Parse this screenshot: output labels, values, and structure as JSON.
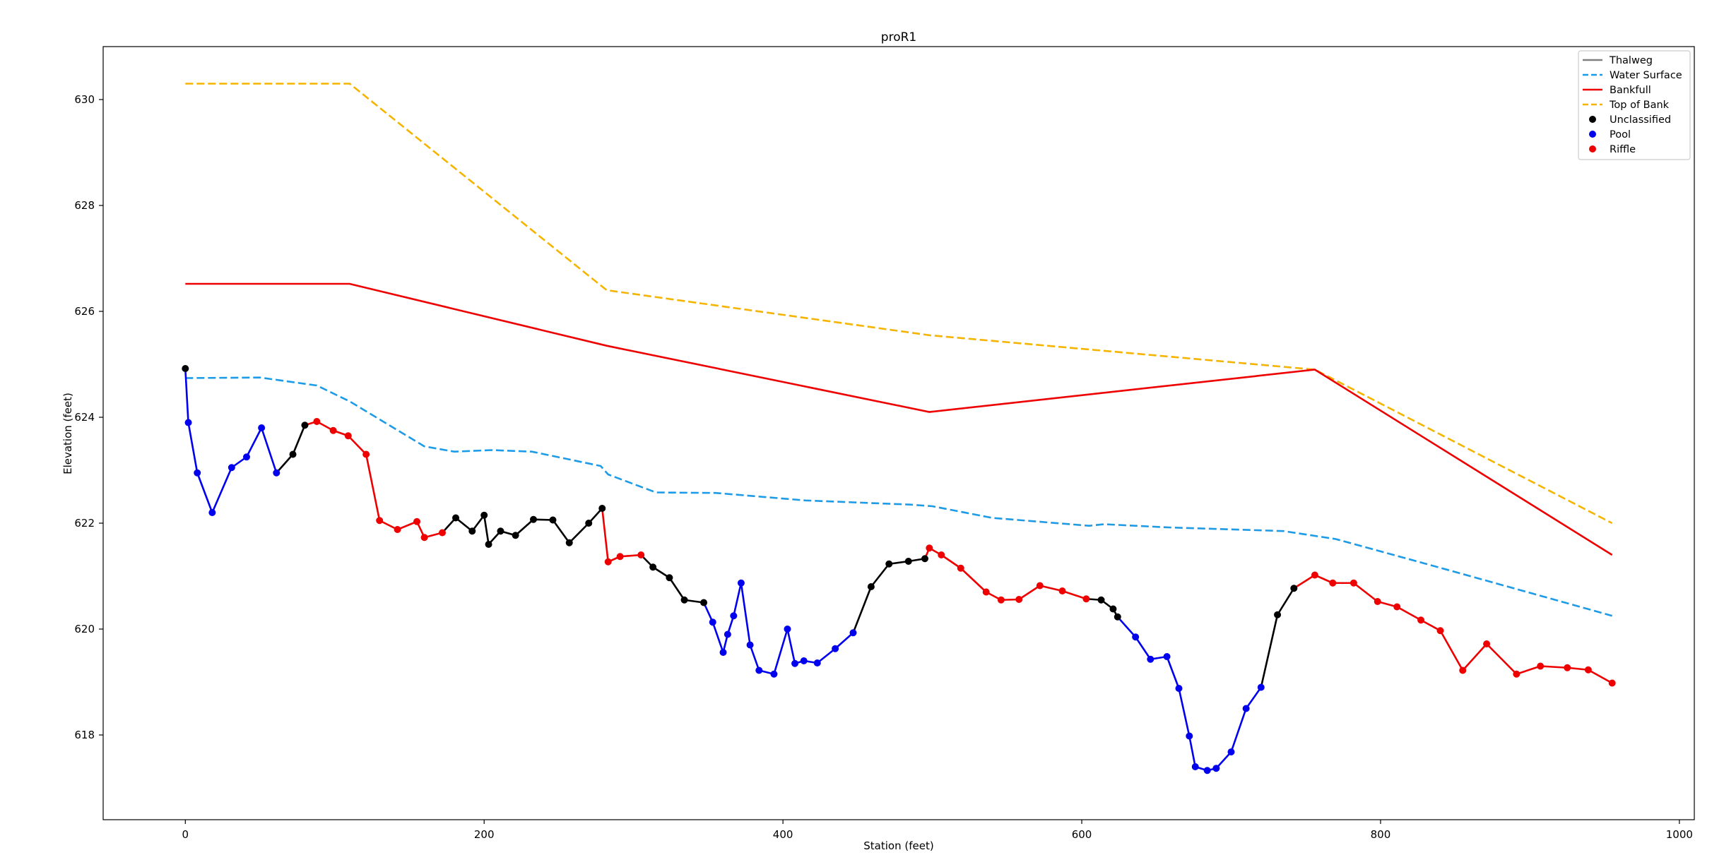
{
  "chart_data": {
    "type": "line",
    "title": "proR1",
    "xlabel": "Station (feet)",
    "ylabel": "Elevation (feet)",
    "xlim": [
      -55,
      1010
    ],
    "ylim": [
      616.4,
      631.0
    ],
    "xticks": [
      0,
      200,
      400,
      600,
      800,
      1000
    ],
    "yticks": [
      618,
      620,
      622,
      624,
      626,
      628,
      630
    ],
    "grid": false,
    "legend": "top-right",
    "colors": {
      "thalweg": "#000000",
      "pool_line": "#0000ee",
      "riffle_line": "#ee0000",
      "water_surface": "#1e9be6",
      "bankfull": "#ee0000",
      "top_of_bank": "#f5b400",
      "legend_thalweg": "#808080",
      "unclassified": "#000000",
      "pool": "#0000ee",
      "riffle": "#ee0000"
    },
    "legend_entries": [
      {
        "label": "Thalweg",
        "kind": "line",
        "color": "#808080",
        "dash": false
      },
      {
        "label": "Water Surface",
        "kind": "line",
        "color": "#1e9be6",
        "dash": true
      },
      {
        "label": "Bankfull",
        "kind": "line",
        "color": "#ee0000",
        "dash": false
      },
      {
        "label": "Top of Bank",
        "kind": "line",
        "color": "#f5b400",
        "dash": true
      },
      {
        "label": "Unclassified",
        "kind": "dot",
        "color": "#000000"
      },
      {
        "label": "Pool",
        "kind": "dot",
        "color": "#0000ee"
      },
      {
        "label": "Riffle",
        "kind": "dot",
        "color": "#ee0000"
      }
    ],
    "series": [
      {
        "name": "Top of Bank",
        "style": "dashed",
        "color": "#f5b400",
        "x": [
          0,
          110,
          282,
          498,
          756,
          955
        ],
        "y": [
          630.3,
          630.3,
          626.4,
          625.55,
          624.9,
          622.0
        ]
      },
      {
        "name": "Bankfull",
        "style": "solid",
        "color": "#ee0000",
        "x": [
          0,
          110,
          282,
          498,
          756,
          955
        ],
        "y": [
          626.52,
          626.52,
          625.35,
          624.1,
          624.9,
          621.4
        ]
      },
      {
        "name": "Water Surface",
        "style": "dashed",
        "color": "#1e9be6",
        "x": [
          0,
          50,
          88,
          110,
          160,
          180,
          205,
          232,
          278,
          283,
          315,
          355,
          415,
          485,
          500,
          540,
          605,
          615,
          658,
          735,
          770,
          828,
          860,
          955
        ],
        "y": [
          624.74,
          624.75,
          624.6,
          624.3,
          623.45,
          623.35,
          623.38,
          623.35,
          623.08,
          622.92,
          622.58,
          622.57,
          622.43,
          622.35,
          622.32,
          622.1,
          621.95,
          621.98,
          621.92,
          621.85,
          621.7,
          621.25,
          621.0,
          620.25
        ]
      }
    ],
    "thalweg_points": [
      {
        "x": 0,
        "y": 624.92,
        "c": "unclassified"
      },
      {
        "x": 2,
        "y": 623.9,
        "c": "pool"
      },
      {
        "x": 8,
        "y": 622.95,
        "c": "pool"
      },
      {
        "x": 18,
        "y": 622.2,
        "c": "pool"
      },
      {
        "x": 31,
        "y": 623.05,
        "c": "pool"
      },
      {
        "x": 41,
        "y": 623.25,
        "c": "pool"
      },
      {
        "x": 51,
        "y": 623.8,
        "c": "pool"
      },
      {
        "x": 61,
        "y": 622.95,
        "c": "pool"
      },
      {
        "x": 72,
        "y": 623.3,
        "c": "unclassified"
      },
      {
        "x": 80,
        "y": 623.85,
        "c": "unclassified"
      },
      {
        "x": 88,
        "y": 623.92,
        "c": "riffle"
      },
      {
        "x": 99,
        "y": 623.75,
        "c": "riffle"
      },
      {
        "x": 109,
        "y": 623.65,
        "c": "riffle"
      },
      {
        "x": 121,
        "y": 623.3,
        "c": "riffle"
      },
      {
        "x": 130,
        "y": 622.05,
        "c": "riffle"
      },
      {
        "x": 142,
        "y": 621.88,
        "c": "riffle"
      },
      {
        "x": 155,
        "y": 622.03,
        "c": "riffle"
      },
      {
        "x": 160,
        "y": 621.73,
        "c": "riffle"
      },
      {
        "x": 172,
        "y": 621.82,
        "c": "riffle"
      },
      {
        "x": 181,
        "y": 622.1,
        "c": "unclassified"
      },
      {
        "x": 192,
        "y": 621.85,
        "c": "unclassified"
      },
      {
        "x": 200,
        "y": 622.15,
        "c": "unclassified"
      },
      {
        "x": 203,
        "y": 621.6,
        "c": "unclassified"
      },
      {
        "x": 211,
        "y": 621.85,
        "c": "unclassified"
      },
      {
        "x": 221,
        "y": 621.77,
        "c": "unclassified"
      },
      {
        "x": 233,
        "y": 622.07,
        "c": "unclassified"
      },
      {
        "x": 246,
        "y": 622.06,
        "c": "unclassified"
      },
      {
        "x": 257,
        "y": 621.63,
        "c": "unclassified"
      },
      {
        "x": 270,
        "y": 622.0,
        "c": "unclassified"
      },
      {
        "x": 279,
        "y": 622.28,
        "c": "unclassified"
      },
      {
        "x": 283,
        "y": 621.27,
        "c": "riffle"
      },
      {
        "x": 291,
        "y": 621.37,
        "c": "riffle"
      },
      {
        "x": 305,
        "y": 621.4,
        "c": "riffle"
      },
      {
        "x": 313,
        "y": 621.17,
        "c": "unclassified"
      },
      {
        "x": 324,
        "y": 620.97,
        "c": "unclassified"
      },
      {
        "x": 334,
        "y": 620.55,
        "c": "unclassified"
      },
      {
        "x": 347,
        "y": 620.5,
        "c": "unclassified"
      },
      {
        "x": 353,
        "y": 620.13,
        "c": "pool"
      },
      {
        "x": 360,
        "y": 619.56,
        "c": "pool"
      },
      {
        "x": 363,
        "y": 619.9,
        "c": "pool"
      },
      {
        "x": 367,
        "y": 620.25,
        "c": "pool"
      },
      {
        "x": 372,
        "y": 620.87,
        "c": "pool"
      },
      {
        "x": 378,
        "y": 619.7,
        "c": "pool"
      },
      {
        "x": 384,
        "y": 619.22,
        "c": "pool"
      },
      {
        "x": 394,
        "y": 619.15,
        "c": "pool"
      },
      {
        "x": 403,
        "y": 620.0,
        "c": "pool"
      },
      {
        "x": 408,
        "y": 619.35,
        "c": "pool"
      },
      {
        "x": 414,
        "y": 619.4,
        "c": "pool"
      },
      {
        "x": 423,
        "y": 619.36,
        "c": "pool"
      },
      {
        "x": 435,
        "y": 619.63,
        "c": "pool"
      },
      {
        "x": 447,
        "y": 619.93,
        "c": "pool"
      },
      {
        "x": 459,
        "y": 620.8,
        "c": "unclassified"
      },
      {
        "x": 471,
        "y": 621.23,
        "c": "unclassified"
      },
      {
        "x": 484,
        "y": 621.28,
        "c": "unclassified"
      },
      {
        "x": 495,
        "y": 621.33,
        "c": "unclassified"
      },
      {
        "x": 498,
        "y": 621.53,
        "c": "riffle"
      },
      {
        "x": 506,
        "y": 621.4,
        "c": "riffle"
      },
      {
        "x": 519,
        "y": 621.15,
        "c": "riffle"
      },
      {
        "x": 536,
        "y": 620.7,
        "c": "riffle"
      },
      {
        "x": 546,
        "y": 620.55,
        "c": "riffle"
      },
      {
        "x": 558,
        "y": 620.56,
        "c": "riffle"
      },
      {
        "x": 572,
        "y": 620.82,
        "c": "riffle"
      },
      {
        "x": 587,
        "y": 620.72,
        "c": "riffle"
      },
      {
        "x": 603,
        "y": 620.57,
        "c": "riffle"
      },
      {
        "x": 613,
        "y": 620.55,
        "c": "unclassified"
      },
      {
        "x": 621,
        "y": 620.38,
        "c": "unclassified"
      },
      {
        "x": 624,
        "y": 620.23,
        "c": "unclassified"
      },
      {
        "x": 636,
        "y": 619.85,
        "c": "pool"
      },
      {
        "x": 646,
        "y": 619.43,
        "c": "pool"
      },
      {
        "x": 657,
        "y": 619.48,
        "c": "pool"
      },
      {
        "x": 665,
        "y": 618.88,
        "c": "pool"
      },
      {
        "x": 672,
        "y": 617.98,
        "c": "pool"
      },
      {
        "x": 676,
        "y": 617.4,
        "c": "pool"
      },
      {
        "x": 684,
        "y": 617.33,
        "c": "pool"
      },
      {
        "x": 690,
        "y": 617.37,
        "c": "pool"
      },
      {
        "x": 700,
        "y": 617.68,
        "c": "pool"
      },
      {
        "x": 710,
        "y": 618.5,
        "c": "pool"
      },
      {
        "x": 720,
        "y": 618.9,
        "c": "pool"
      },
      {
        "x": 731,
        "y": 620.27,
        "c": "unclassified"
      },
      {
        "x": 742,
        "y": 620.77,
        "c": "unclassified"
      },
      {
        "x": 756,
        "y": 621.02,
        "c": "riffle"
      },
      {
        "x": 768,
        "y": 620.87,
        "c": "riffle"
      },
      {
        "x": 782,
        "y": 620.87,
        "c": "riffle"
      },
      {
        "x": 798,
        "y": 620.52,
        "c": "riffle"
      },
      {
        "x": 811,
        "y": 620.42,
        "c": "riffle"
      },
      {
        "x": 827,
        "y": 620.17,
        "c": "riffle"
      },
      {
        "x": 840,
        "y": 619.97,
        "c": "riffle"
      },
      {
        "x": 855,
        "y": 619.22,
        "c": "riffle"
      },
      {
        "x": 871,
        "y": 619.72,
        "c": "riffle"
      },
      {
        "x": 891,
        "y": 619.15,
        "c": "riffle"
      },
      {
        "x": 907,
        "y": 619.3,
        "c": "riffle"
      },
      {
        "x": 925,
        "y": 619.27,
        "c": "riffle"
      },
      {
        "x": 939,
        "y": 619.23,
        "c": "riffle"
      },
      {
        "x": 955,
        "y": 618.98,
        "c": "riffle"
      }
    ]
  }
}
